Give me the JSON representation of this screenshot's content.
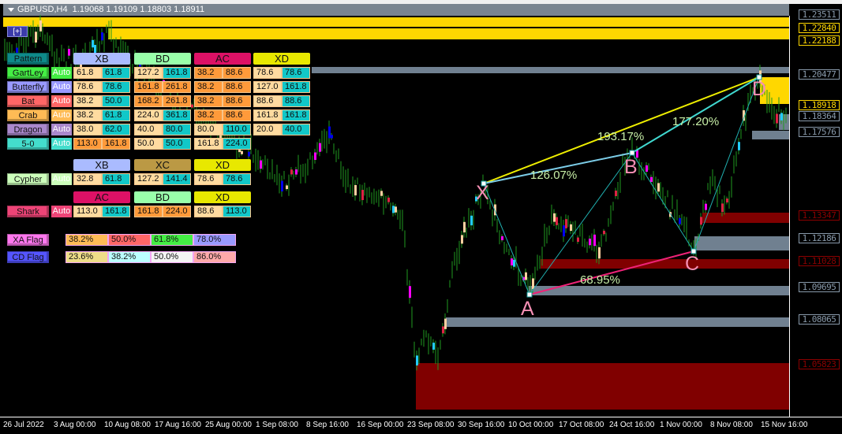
{
  "window": {
    "title": "GBPUSD,H4  1.19068 1.19109 1.18803 1.18911",
    "expand_button": "[+]"
  },
  "price_axis": [
    "1.23511",
    "1.22840",
    "1.22188",
    "1.20477",
    "1.18918",
    "1.18364",
    "1.17576",
    "1.13347",
    "1.12186",
    "1.11028",
    "1.09695",
    "1.08065",
    "1.05823"
  ],
  "time_axis": [
    "26 Jul 2022",
    "3 Aug 00:00",
    "10 Aug 08:00",
    "17 Aug 16:00",
    "25 Aug 00:00",
    "1 Sep 08:00",
    "8 Sep 16:00",
    "16 Sep 00:00",
    "23 Sep 08:00",
    "30 Sep 16:00",
    "10 Oct 00:00",
    "17 Oct 08:00",
    "24 Oct 16:00",
    "1 Nov 00:00",
    "8 Nov 08:00",
    "15 Nov 16:00"
  ],
  "pattern": {
    "points": [
      "X",
      "A",
      "B",
      "C",
      "D"
    ],
    "ratios": {
      "xb": "126.07%",
      "xd": "193.17%",
      "bd": "177.20%",
      "ac": "68.95%"
    }
  },
  "colors": {
    "yellow_zone": "#ffd700",
    "gray_zone": "#708090",
    "red_zone": "#800000",
    "xd_line": "#eeee00",
    "ac_line": "#ee2277",
    "leg_line": "#20b0b0"
  },
  "panel": {
    "pattern_label": "Pattern",
    "auto_label": "Auto",
    "headers": [
      "XB",
      "BD",
      "AC",
      "XD"
    ],
    "rows": [
      {
        "name": "GartLey",
        "color": "#44ee44",
        "cells": [
          [
            "61.8",
            "l"
          ],
          [
            "61.8",
            "t"
          ],
          [
            "127.2",
            "l"
          ],
          [
            "161.8",
            "t"
          ],
          [
            "38.2",
            "o"
          ],
          [
            "88.6",
            "o"
          ],
          [
            "78.6",
            "l"
          ],
          [
            "78.6",
            "t"
          ]
        ]
      },
      {
        "name": "Butterfly",
        "color": "#9999ff",
        "cells": [
          [
            "78.6",
            "l"
          ],
          [
            "78.6",
            "t"
          ],
          [
            "161.8",
            "o"
          ],
          [
            "261.8",
            "o"
          ],
          [
            "38.2",
            "o"
          ],
          [
            "88.6",
            "o"
          ],
          [
            "127.0",
            "l"
          ],
          [
            "161.8",
            "t"
          ]
        ]
      },
      {
        "name": "Bat",
        "color": "#ff6666",
        "cells": [
          [
            "38.2",
            "l"
          ],
          [
            "50.0",
            "t"
          ],
          [
            "168.2",
            "o"
          ],
          [
            "261.8",
            "o"
          ],
          [
            "38.2",
            "o"
          ],
          [
            "88.6",
            "o"
          ],
          [
            "88.6",
            "l"
          ],
          [
            "88.6",
            "t"
          ]
        ]
      },
      {
        "name": "Crab",
        "color": "#ffbb55",
        "cells": [
          [
            "38.2",
            "l"
          ],
          [
            "61.8",
            "t"
          ],
          [
            "224.0",
            "l"
          ],
          [
            "361.8",
            "t"
          ],
          [
            "38.2",
            "o"
          ],
          [
            "88.6",
            "o"
          ],
          [
            "161.8",
            "l"
          ],
          [
            "161.8",
            "t"
          ]
        ]
      },
      {
        "name": "Dragon",
        "color": "#aa88cc",
        "cells": [
          [
            "38.0",
            "l"
          ],
          [
            "62.0",
            "t"
          ],
          [
            "40.0",
            "l"
          ],
          [
            "80.0",
            "t"
          ],
          [
            "80.0",
            "l"
          ],
          [
            "110.0",
            "t"
          ],
          [
            "20.0",
            "l"
          ],
          [
            "40.0",
            "t"
          ]
        ]
      },
      {
        "name": "5-0",
        "color": "#44ddcc",
        "cells": [
          [
            "113.0",
            "o"
          ],
          [
            "161.8",
            "o"
          ],
          [
            "50.0",
            "l"
          ],
          [
            "50.0",
            "t"
          ],
          [
            "161.8",
            "l"
          ],
          [
            "224.0",
            "t"
          ]
        ]
      }
    ],
    "cypher": {
      "name": "Cypher",
      "color": "#ccffbb",
      "headers": [
        "XB",
        "XC",
        "XD"
      ],
      "cells": [
        [
          "32.8",
          "l"
        ],
        [
          "61.8",
          "t"
        ],
        [
          "127.2",
          "l"
        ],
        [
          "141.4",
          "t"
        ],
        [
          "78.6",
          "l"
        ],
        [
          "78.6",
          "t"
        ]
      ]
    },
    "shark": {
      "name": "Shark",
      "color": "#ee4477",
      "headers": [
        "AC",
        "BD",
        "XD"
      ],
      "cells": [
        [
          "113.0",
          "l"
        ],
        [
          "161.8",
          "t"
        ],
        [
          "161.8",
          "o"
        ],
        [
          "224.0",
          "o"
        ],
        [
          "88.6",
          "l"
        ],
        [
          "113.0",
          "t"
        ]
      ]
    },
    "xa_flag": {
      "name": "XA Flag",
      "color": "#ff77ee",
      "values": [
        "38.2%",
        "50.0%",
        "61.8%",
        "78.0%"
      ],
      "cell_colors": [
        "#ffbb55",
        "#ff6666",
        "#44ee44",
        "#9999ff"
      ]
    },
    "cd_flag": {
      "name": "CD Flag",
      "color": "#5555ff",
      "values": [
        "23.6%",
        "38.2%",
        "50.0%",
        "86.0%"
      ],
      "cell_colors": [
        "#eedd88",
        "#bbffff",
        "#f4f4f4",
        "#ffaaaa"
      ]
    }
  }
}
